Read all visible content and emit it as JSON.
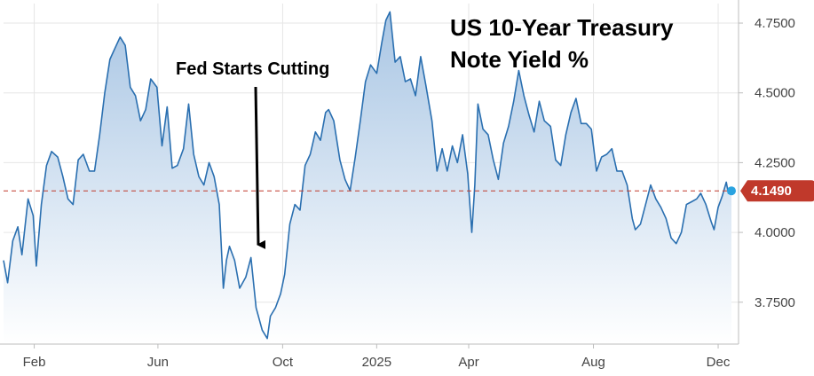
{
  "chart_data": {
    "type": "area",
    "title_lines": [
      "US 10-Year Treasury",
      "Note Yield %"
    ],
    "annotation": {
      "text": "Fed Starts Cutting",
      "target_date": "2024-09-18",
      "target_value": 3.72
    },
    "x_tick_labels": [
      {
        "label": "Feb",
        "date": "2024-02-01"
      },
      {
        "label": "Jun",
        "date": "2024-06-01"
      },
      {
        "label": "Oct",
        "date": "2024-10-01"
      },
      {
        "label": "2025",
        "date": "2025-01-01"
      },
      {
        "label": "Apr",
        "date": "2025-04-01"
      },
      {
        "label": "Aug",
        "date": "2025-08-01"
      },
      {
        "label": "Dec",
        "date": "2025-12-01"
      }
    ],
    "y_tick_labels": [
      "3.7500",
      "4.0000",
      "4.2500",
      "4.5000",
      "4.7500"
    ],
    "y_ticks": [
      3.75,
      4.0,
      4.25,
      4.5,
      4.75
    ],
    "ylim": [
      3.6,
      4.82
    ],
    "xlim": [
      "2024-01-02",
      "2025-12-14"
    ],
    "last_value": 4.149,
    "last_value_label": "4.1490",
    "grid": true,
    "y_axis_side": "right",
    "colors": {
      "line": "#2a6fb0",
      "fill_top": "#a9c6e4",
      "fill_bottom": "#ffffff",
      "ref_line": "#c0392b",
      "badge": "#c0392b",
      "marker": "#2aa3e0",
      "grid": "#e6e6e6",
      "axis": "#bdbdbd"
    },
    "series": [
      {
        "points": [
          [
            "2024-01-02",
            3.9
          ],
          [
            "2024-01-06",
            3.82
          ],
          [
            "2024-01-11",
            3.97
          ],
          [
            "2024-01-16",
            4.02
          ],
          [
            "2024-01-20",
            3.92
          ],
          [
            "2024-01-26",
            4.12
          ],
          [
            "2024-01-31",
            4.06
          ],
          [
            "2024-02-03",
            3.88
          ],
          [
            "2024-02-08",
            4.1
          ],
          [
            "2024-02-13",
            4.24
          ],
          [
            "2024-02-18",
            4.29
          ],
          [
            "2024-02-24",
            4.27
          ],
          [
            "2024-02-29",
            4.2
          ],
          [
            "2024-03-05",
            4.12
          ],
          [
            "2024-03-10",
            4.1
          ],
          [
            "2024-03-15",
            4.26
          ],
          [
            "2024-03-20",
            4.28
          ],
          [
            "2024-03-26",
            4.22
          ],
          [
            "2024-03-31",
            4.22
          ],
          [
            "2024-04-05",
            4.35
          ],
          [
            "2024-04-10",
            4.5
          ],
          [
            "2024-04-15",
            4.62
          ],
          [
            "2024-04-20",
            4.66
          ],
          [
            "2024-04-25",
            4.7
          ],
          [
            "2024-04-30",
            4.67
          ],
          [
            "2024-05-05",
            4.52
          ],
          [
            "2024-05-10",
            4.49
          ],
          [
            "2024-05-15",
            4.4
          ],
          [
            "2024-05-20",
            4.44
          ],
          [
            "2024-05-25",
            4.55
          ],
          [
            "2024-05-31",
            4.52
          ],
          [
            "2024-06-05",
            4.31
          ],
          [
            "2024-06-10",
            4.45
          ],
          [
            "2024-06-15",
            4.23
          ],
          [
            "2024-06-20",
            4.24
          ],
          [
            "2024-06-26",
            4.3
          ],
          [
            "2024-07-01",
            4.46
          ],
          [
            "2024-07-06",
            4.28
          ],
          [
            "2024-07-11",
            4.2
          ],
          [
            "2024-07-16",
            4.17
          ],
          [
            "2024-07-21",
            4.25
          ],
          [
            "2024-07-26",
            4.2
          ],
          [
            "2024-07-31",
            4.1
          ],
          [
            "2024-08-04",
            3.8
          ],
          [
            "2024-08-07",
            3.9
          ],
          [
            "2024-08-10",
            3.95
          ],
          [
            "2024-08-15",
            3.9
          ],
          [
            "2024-08-20",
            3.8
          ],
          [
            "2024-08-26",
            3.84
          ],
          [
            "2024-08-31",
            3.91
          ],
          [
            "2024-09-05",
            3.73
          ],
          [
            "2024-09-11",
            3.65
          ],
          [
            "2024-09-16",
            3.62
          ],
          [
            "2024-09-19",
            3.7
          ],
          [
            "2024-09-24",
            3.73
          ],
          [
            "2024-09-29",
            3.78
          ],
          [
            "2024-10-03",
            3.85
          ],
          [
            "2024-10-08",
            4.03
          ],
          [
            "2024-10-13",
            4.1
          ],
          [
            "2024-10-18",
            4.08
          ],
          [
            "2024-10-23",
            4.24
          ],
          [
            "2024-10-28",
            4.28
          ],
          [
            "2024-11-02",
            4.36
          ],
          [
            "2024-11-07",
            4.33
          ],
          [
            "2024-11-12",
            4.43
          ],
          [
            "2024-11-15",
            4.44
          ],
          [
            "2024-11-20",
            4.4
          ],
          [
            "2024-11-26",
            4.26
          ],
          [
            "2024-12-01",
            4.19
          ],
          [
            "2024-12-06",
            4.15
          ],
          [
            "2024-12-11",
            4.27
          ],
          [
            "2024-12-16",
            4.4
          ],
          [
            "2024-12-21",
            4.54
          ],
          [
            "2024-12-26",
            4.6
          ],
          [
            "2025-01-01",
            4.57
          ],
          [
            "2025-01-06",
            4.68
          ],
          [
            "2025-01-10",
            4.76
          ],
          [
            "2025-01-14",
            4.79
          ],
          [
            "2025-01-19",
            4.61
          ],
          [
            "2025-01-24",
            4.63
          ],
          [
            "2025-01-29",
            4.54
          ],
          [
            "2025-02-03",
            4.55
          ],
          [
            "2025-02-08",
            4.49
          ],
          [
            "2025-02-13",
            4.63
          ],
          [
            "2025-02-18",
            4.53
          ],
          [
            "2025-02-24",
            4.4
          ],
          [
            "2025-03-01",
            4.22
          ],
          [
            "2025-03-06",
            4.3
          ],
          [
            "2025-03-11",
            4.22
          ],
          [
            "2025-03-16",
            4.31
          ],
          [
            "2025-03-21",
            4.25
          ],
          [
            "2025-03-26",
            4.35
          ],
          [
            "2025-03-31",
            4.21
          ],
          [
            "2025-04-04",
            4.0
          ],
          [
            "2025-04-07",
            4.17
          ],
          [
            "2025-04-10",
            4.46
          ],
          [
            "2025-04-15",
            4.37
          ],
          [
            "2025-04-20",
            4.35
          ],
          [
            "2025-04-25",
            4.26
          ],
          [
            "2025-04-30",
            4.19
          ],
          [
            "2025-05-05",
            4.32
          ],
          [
            "2025-05-10",
            4.38
          ],
          [
            "2025-05-15",
            4.47
          ],
          [
            "2025-05-20",
            4.58
          ],
          [
            "2025-05-25",
            4.49
          ],
          [
            "2025-05-30",
            4.42
          ],
          [
            "2025-06-04",
            4.36
          ],
          [
            "2025-06-09",
            4.47
          ],
          [
            "2025-06-14",
            4.4
          ],
          [
            "2025-06-20",
            4.38
          ],
          [
            "2025-06-25",
            4.26
          ],
          [
            "2025-06-30",
            4.24
          ],
          [
            "2025-07-05",
            4.35
          ],
          [
            "2025-07-10",
            4.43
          ],
          [
            "2025-07-15",
            4.48
          ],
          [
            "2025-07-20",
            4.39
          ],
          [
            "2025-07-25",
            4.39
          ],
          [
            "2025-07-30",
            4.37
          ],
          [
            "2025-08-04",
            4.22
          ],
          [
            "2025-08-09",
            4.27
          ],
          [
            "2025-08-14",
            4.28
          ],
          [
            "2025-08-19",
            4.3
          ],
          [
            "2025-08-24",
            4.22
          ],
          [
            "2025-08-29",
            4.22
          ],
          [
            "2025-09-03",
            4.17
          ],
          [
            "2025-09-08",
            4.05
          ],
          [
            "2025-09-11",
            4.01
          ],
          [
            "2025-09-16",
            4.03
          ],
          [
            "2025-09-21",
            4.1
          ],
          [
            "2025-09-26",
            4.17
          ],
          [
            "2025-10-01",
            4.12
          ],
          [
            "2025-10-06",
            4.09
          ],
          [
            "2025-10-11",
            4.05
          ],
          [
            "2025-10-16",
            3.98
          ],
          [
            "2025-10-21",
            3.96
          ],
          [
            "2025-10-26",
            4.0
          ],
          [
            "2025-10-31",
            4.1
          ],
          [
            "2025-11-05",
            4.11
          ],
          [
            "2025-11-10",
            4.12
          ],
          [
            "2025-11-14",
            4.14
          ],
          [
            "2025-11-19",
            4.1
          ],
          [
            "2025-11-24",
            4.04
          ],
          [
            "2025-11-27",
            4.01
          ],
          [
            "2025-12-01",
            4.09
          ],
          [
            "2025-12-05",
            4.13
          ],
          [
            "2025-12-09",
            4.18
          ],
          [
            "2025-12-11",
            4.14
          ],
          [
            "2025-12-14",
            4.149
          ]
        ]
      }
    ]
  }
}
